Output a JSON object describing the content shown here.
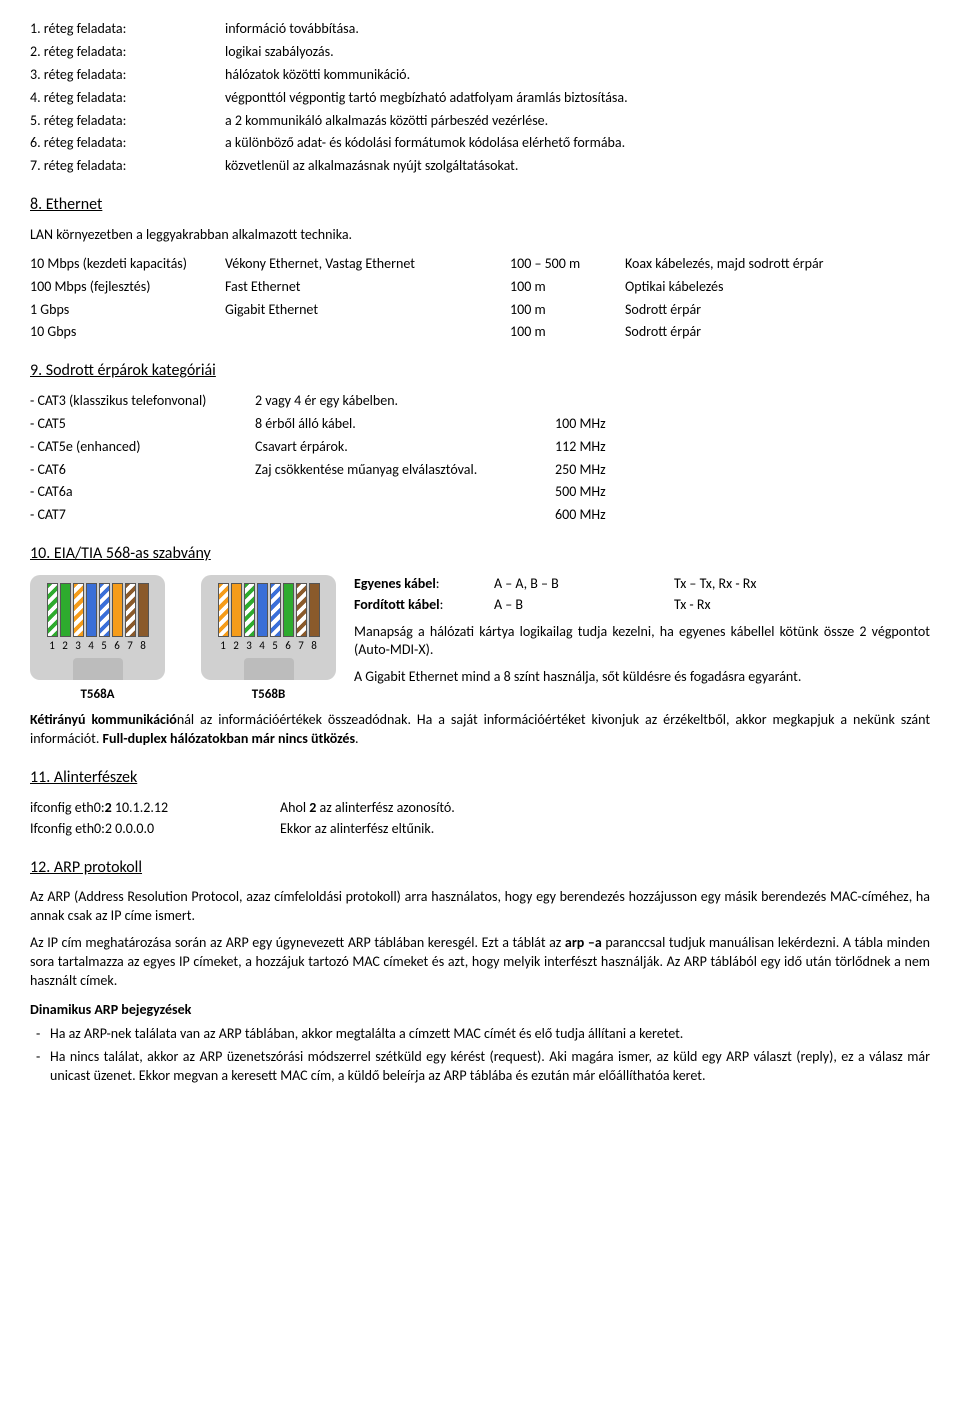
{
  "layers": [
    {
      "label": "1. réteg feladata:",
      "desc": "információ továbbítása."
    },
    {
      "label": "2. réteg feladata:",
      "desc": "logikai szabályozás."
    },
    {
      "label": "3. réteg feladata:",
      "desc": "hálózatok közötti kommunikáció."
    },
    {
      "label": "4. réteg feladata:",
      "desc": "végponttól végpontig tartó megbízható adatfolyam áramlás biztosítása."
    },
    {
      "label": "5. réteg feladata:",
      "desc": "a 2 kommunikáló alkalmazás közötti párbeszéd vezérlése."
    },
    {
      "label": "6. réteg feladata:",
      "desc": "a különböző adat- és kódolási formátumok kódolása elérhető formába."
    },
    {
      "label": "7. réteg feladata:",
      "desc": "közvetlenül az alkalmazásnak nyújt szolgáltatásokat."
    }
  ],
  "s8": {
    "title": "8. Ethernet",
    "intro": "LAN környezetben a leggyakrabban alkalmazott technika.",
    "rows": [
      {
        "c1": "10 Mbps (kezdeti kapacitás)",
        "c2": "Vékony Ethernet, Vastag Ethernet",
        "c3": "100 – 500 m",
        "c4": "Koax kábelezés, majd sodrott érpár"
      },
      {
        "c1": "100 Mbps (fejlesztés)",
        "c2": "Fast Ethernet",
        "c3": "100 m",
        "c4": "Optikai kábelezés"
      },
      {
        "c1": "1 Gbps",
        "c2": "Gigabit Ethernet",
        "c3": "100 m",
        "c4": "Sodrott érpár"
      },
      {
        "c1": "10 Gbps",
        "c2": "",
        "c3": "100 m",
        "c4": "Sodrott érpár"
      }
    ]
  },
  "s9": {
    "title": "9. Sodrott érpárok kategóriái",
    "rows": [
      {
        "c1": "- CAT3 (klasszikus telefonvonal)",
        "c2": "2 vagy 4 ér egy kábelben.",
        "c3": ""
      },
      {
        "c1": "- CAT5",
        "c2": "8 érből álló kábel.",
        "c3": "100 MHz"
      },
      {
        "c1": "- CAT5e (enhanced)",
        "c2": "Csavart érpárok.",
        "c3": "112 MHz"
      },
      {
        "c1": "- CAT6",
        "c2": "Zaj csökkentése műanyag elválasztóval.",
        "c3": "250 MHz"
      },
      {
        "c1": "- CAT6a",
        "c2": "",
        "c3": "500 MHz"
      },
      {
        "c1": "- CAT7",
        "c2": "",
        "c3": "600 MHz"
      }
    ]
  },
  "s10": {
    "title": "10. EIA/TIA 568-as szabvány",
    "t568a_label": "T568A",
    "t568b_label": "T568B",
    "t568a_colors": [
      {
        "type": "striped",
        "color": "#2eab2e"
      },
      {
        "type": "solid",
        "color": "#2eab2e"
      },
      {
        "type": "striped",
        "color": "#f59c1a"
      },
      {
        "type": "solid",
        "color": "#3a6fd8"
      },
      {
        "type": "striped",
        "color": "#3a6fd8"
      },
      {
        "type": "solid",
        "color": "#f59c1a"
      },
      {
        "type": "striped",
        "color": "#8a5a2b"
      },
      {
        "type": "solid",
        "color": "#8a5a2b"
      }
    ],
    "t568b_colors": [
      {
        "type": "striped",
        "color": "#f59c1a"
      },
      {
        "type": "solid",
        "color": "#f59c1a"
      },
      {
        "type": "striped",
        "color": "#2eab2e"
      },
      {
        "type": "solid",
        "color": "#3a6fd8"
      },
      {
        "type": "striped",
        "color": "#3a6fd8"
      },
      {
        "type": "solid",
        "color": "#2eab2e"
      },
      {
        "type": "striped",
        "color": "#8a5a2b"
      },
      {
        "type": "solid",
        "color": "#8a5a2b"
      }
    ],
    "cables": [
      {
        "name": "Egyenes kábel",
        "map": "A – A, B – B",
        "txrx": "Tx – Tx, Rx - Rx"
      },
      {
        "name": "Fordított kábel",
        "map": "A – B",
        "txrx": "Tx - Rx"
      }
    ],
    "p1": "Manapság a hálózati kártya logikailag tudja kezelni, ha egyenes kábellel kötünk össze 2 végpontot (Auto-MDI-X).",
    "p2": "A Gigabit Ethernet mind a 8 színt használja, sőt küldésre és fogadásra egyaránt."
  },
  "duplex_para_pre": "Kétirányú kommunikáció",
  "duplex_para_mid": "nál az információértékek összeadódnak. Ha a saját információértéket kivonjuk az érzékeltből, akkor megkapjuk a nekünk szánt információt. ",
  "duplex_para_bold": "Full-duplex hálózatokban már nincs ütközés",
  "s11": {
    "title": "11. Alinterfészek",
    "rows": [
      {
        "c1_pre": "ifconfig eth0:",
        "c1_b": "2",
        "c1_post": " 10.1.2.12",
        "c2_pre": "Ahol ",
        "c2_b": "2",
        "c2_post": " az alinterfész azonosító."
      },
      {
        "c1_pre": "Ifconfig eth0:2 0.0.0.0",
        "c1_b": "",
        "c1_post": "",
        "c2_pre": "Ekkor az alinterfész eltűnik.",
        "c2_b": "",
        "c2_post": ""
      }
    ]
  },
  "s12": {
    "title": "12. ARP protokoll",
    "p1": "Az ARP (Address Resolution Protocol, azaz címfeloldási protokoll) arra használatos, hogy egy berendezés hozzájusson egy másik berendezés MAC-címéhez, ha annak csak az IP címe ismert.",
    "p2_pre": "Az IP cím meghatározása során az ARP egy úgynevezett ARP táblában keresgél. Ezt a táblát az ",
    "p2_b": "arp –a",
    "p2_post": " paranccsal tudjuk manuálisan lekérdezni. A tábla minden sora tartalmazza az egyes IP címeket, a hozzájuk tartozó MAC címeket és azt, hogy melyik interfészt használják. Az ARP táblából egy idő után törlődnek a nem használt címek.",
    "dyn_title": "Dinamikus ARP bejegyzések",
    "items": [
      "Ha az ARP-nek találata van az ARP táblában, akkor megtalálta a címzett MAC címét és elő tudja állítani a keretet.",
      "Ha nincs találat, akkor az ARP üzenetszórási módszerrel szétküld egy kérést (request). Aki magára ismer, az küld egy ARP választ (reply), ez a válasz már unicast üzenet. Ekkor megvan a keresett MAC cím, a küldő beleírja az ARP táblába és ezután már előállíthatóa keret."
    ]
  }
}
